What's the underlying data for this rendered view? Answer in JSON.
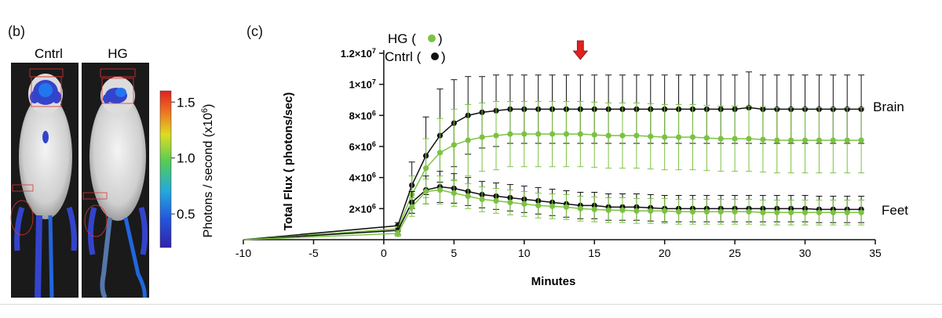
{
  "panel_b": {
    "label": "(b)",
    "mouse_left_label": "Cntrl",
    "mouse_right_label": "HG",
    "colorbar": {
      "label": "Photons / second (x10",
      "label_exp": "6",
      "label_close": ")",
      "ticks": [
        "1.5",
        "1.0",
        "0.5"
      ],
      "tick_values": [
        1.5,
        1.0,
        0.5
      ],
      "range": [
        0.2,
        1.6
      ],
      "colors": [
        "#3322aa",
        "#2255dd",
        "#22aadd",
        "#55cc55",
        "#dddd22",
        "#ee7722",
        "#dd2222"
      ]
    }
  },
  "panel_c": {
    "label": "(c)",
    "legend_hg_text": "HG (",
    "legend_cntrl_text": "Cntrl (",
    "legend_close": ")",
    "legend_hg_color": "#7cc242",
    "legend_cntrl_color": "#111111",
    "arrow_color": "#dd2222",
    "annotation_brain": "Brain",
    "annotation_feet": "Feet"
  },
  "chart_data": {
    "type": "line",
    "xlabel": "Minutes",
    "ylabel": "Total Flux ( photons/sec)",
    "xlim": [
      -10,
      35
    ],
    "ylim": [
      0,
      12000000
    ],
    "x_ticks": [
      -10,
      -5,
      0,
      5,
      10,
      15,
      20,
      25,
      30,
      35
    ],
    "x_tick_labels": [
      "-10",
      "-5",
      "0",
      "5",
      "10",
      "15",
      "20",
      "25",
      "30",
      "35"
    ],
    "y_ticks": [
      2000000,
      4000000,
      6000000,
      8000000,
      10000000,
      12000000
    ],
    "y_tick_labels": [
      {
        "base": "2×10",
        "exp": "6"
      },
      {
        "base": "4×10",
        "exp": "6"
      },
      {
        "base": "6×10",
        "exp": "6"
      },
      {
        "base": "8×10",
        "exp": "6"
      },
      {
        "base": "1×10",
        "exp": "7"
      },
      {
        "base": "1.2×10",
        "exp": "7"
      }
    ],
    "arrow_x": 14,
    "series": [
      {
        "name": "Cntrl",
        "group": "Brain",
        "color": "#111111",
        "x": [
          1,
          2,
          3,
          4,
          5,
          6,
          7,
          8,
          9,
          10,
          11,
          12,
          13,
          14,
          15,
          16,
          17,
          18,
          19,
          20,
          21,
          22,
          23,
          24,
          25,
          26,
          27,
          28,
          29,
          30,
          31,
          32,
          33,
          34
        ],
        "y": [
          900000,
          3500000,
          5400000,
          6700000,
          7500000,
          8000000,
          8200000,
          8300000,
          8400000,
          8400000,
          8400000,
          8400000,
          8400000,
          8400000,
          8400000,
          8400000,
          8400000,
          8400000,
          8400000,
          8400000,
          8400000,
          8400000,
          8400000,
          8400000,
          8400000,
          8500000,
          8400000,
          8400000,
          8400000,
          8400000,
          8400000,
          8400000,
          8400000,
          8400000
        ],
        "err": [
          200000,
          1500000,
          2500000,
          3000000,
          2800000,
          2500000,
          2300000,
          2300000,
          2200000,
          2200000,
          2200000,
          2200000,
          2200000,
          2200000,
          2200000,
          2200000,
          2200000,
          2200000,
          2200000,
          2200000,
          2200000,
          2200000,
          2200000,
          2200000,
          2200000,
          2300000,
          2200000,
          2200000,
          2200000,
          2200000,
          2200000,
          2200000,
          2200000,
          2200000
        ]
      },
      {
        "name": "HG",
        "group": "Brain",
        "color": "#7cc242",
        "x": [
          1,
          2,
          3,
          4,
          5,
          6,
          7,
          8,
          9,
          10,
          11,
          12,
          13,
          14,
          15,
          16,
          17,
          18,
          19,
          20,
          21,
          22,
          23,
          24,
          25,
          26,
          27,
          28,
          29,
          30,
          31,
          32,
          33,
          34
        ],
        "y": [
          700000,
          2900000,
          4600000,
          5600000,
          6100000,
          6400000,
          6600000,
          6700000,
          6800000,
          6800000,
          6800000,
          6800000,
          6800000,
          6800000,
          6750000,
          6700000,
          6700000,
          6700000,
          6650000,
          6600000,
          6600000,
          6600000,
          6550000,
          6500000,
          6500000,
          6500000,
          6450000,
          6400000,
          6400000,
          6400000,
          6400000,
          6400000,
          6400000,
          6400000
        ],
        "err": [
          150000,
          1200000,
          1900000,
          2200000,
          2300000,
          2300000,
          2200000,
          2200000,
          2100000,
          2100000,
          2100000,
          2100000,
          2100000,
          2100000,
          2100000,
          2100000,
          2100000,
          2100000,
          2100000,
          2100000,
          2100000,
          2100000,
          2100000,
          2100000,
          2100000,
          2100000,
          2100000,
          2100000,
          2100000,
          2100000,
          2100000,
          2100000,
          2100000,
          2100000
        ]
      },
      {
        "name": "Cntrl",
        "group": "Feet",
        "color": "#111111",
        "x": [
          1,
          2,
          3,
          4,
          5,
          6,
          7,
          8,
          9,
          10,
          11,
          12,
          13,
          14,
          15,
          16,
          17,
          18,
          19,
          20,
          21,
          22,
          23,
          24,
          25,
          26,
          27,
          28,
          29,
          30,
          31,
          32,
          33,
          34
        ],
        "y": [
          600000,
          2400000,
          3200000,
          3400000,
          3300000,
          3100000,
          2900000,
          2800000,
          2700000,
          2600000,
          2500000,
          2400000,
          2300000,
          2200000,
          2200000,
          2100000,
          2100000,
          2100000,
          2050000,
          2000000,
          2000000,
          2000000,
          2000000,
          2000000,
          2000000,
          2000000,
          2000000,
          2000000,
          2000000,
          2000000,
          1950000,
          1950000,
          1950000,
          1950000
        ],
        "err": [
          300000,
          700000,
          900000,
          1000000,
          950000,
          900000,
          850000,
          850000,
          850000,
          850000,
          850000,
          850000,
          850000,
          850000,
          850000,
          850000,
          850000,
          850000,
          850000,
          850000,
          850000,
          850000,
          850000,
          850000,
          850000,
          850000,
          850000,
          850000,
          850000,
          850000,
          850000,
          850000,
          850000,
          850000
        ]
      },
      {
        "name": "HG",
        "group": "Feet",
        "color": "#7cc242",
        "x": [
          1,
          2,
          3,
          4,
          5,
          6,
          7,
          8,
          9,
          10,
          11,
          12,
          13,
          14,
          15,
          16,
          17,
          18,
          19,
          20,
          21,
          22,
          23,
          24,
          25,
          26,
          27,
          28,
          29,
          30,
          31,
          32,
          33,
          34
        ],
        "y": [
          400000,
          2100000,
          3100000,
          3200000,
          3000000,
          2800000,
          2600000,
          2500000,
          2400000,
          2300000,
          2200000,
          2150000,
          2100000,
          2000000,
          1950000,
          1900000,
          1900000,
          1850000,
          1850000,
          1850000,
          1800000,
          1800000,
          1800000,
          1800000,
          1800000,
          1800000,
          1750000,
          1750000,
          1750000,
          1750000,
          1750000,
          1750000,
          1750000,
          1750000
        ],
        "err": [
          200000,
          600000,
          800000,
          900000,
          850000,
          800000,
          800000,
          800000,
          800000,
          800000,
          800000,
          800000,
          800000,
          800000,
          800000,
          800000,
          800000,
          800000,
          800000,
          800000,
          800000,
          800000,
          800000,
          800000,
          800000,
          800000,
          800000,
          800000,
          800000,
          800000,
          800000,
          800000,
          800000,
          800000
        ]
      }
    ]
  }
}
